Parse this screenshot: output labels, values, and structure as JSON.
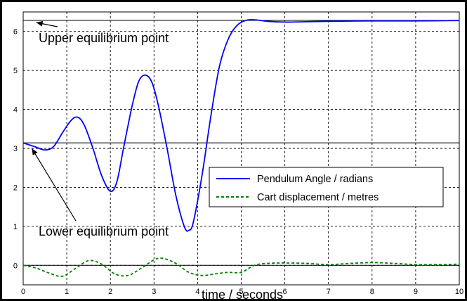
{
  "chart_data": {
    "type": "line",
    "xlabel": "time / seconds",
    "ylabel": "",
    "xlim": [
      0,
      10
    ],
    "ylim": [
      -0.5,
      6.5
    ],
    "xticks": [
      "0",
      "1",
      "2",
      "3",
      "4",
      "5",
      "6",
      "7",
      "8",
      "9",
      "10"
    ],
    "yticks": [
      "0",
      "1",
      "2",
      "3",
      "4",
      "5",
      "6"
    ],
    "grid": true,
    "legend_position": "center-right",
    "reference_lines": [
      {
        "y": 6.2832
      },
      {
        "y": 3.1416
      },
      {
        "y": 0
      }
    ],
    "series": [
      {
        "name": "Pendulum Angle / radians",
        "color": "#0000ff",
        "style": "solid",
        "x": [
          0,
          0.25,
          0.5,
          0.7,
          0.9,
          1.1,
          1.25,
          1.4,
          1.6,
          1.8,
          2.0,
          2.15,
          2.3,
          2.5,
          2.65,
          2.8,
          2.95,
          3.1,
          3.3,
          3.5,
          3.7,
          3.8,
          3.9,
          4.1,
          4.3,
          4.5,
          4.7,
          4.9,
          5.1,
          5.3,
          5.6,
          6.0,
          6.5,
          7,
          8,
          9,
          10
        ],
        "y": [
          3.14,
          3.05,
          2.96,
          3.05,
          3.4,
          3.72,
          3.8,
          3.6,
          3.0,
          2.3,
          1.9,
          2.15,
          3.0,
          4.1,
          4.72,
          4.88,
          4.7,
          4.1,
          3.0,
          1.8,
          0.98,
          0.9,
          1.1,
          2.3,
          3.8,
          5.1,
          5.8,
          6.15,
          6.28,
          6.3,
          6.26,
          6.24,
          6.25,
          6.26,
          6.27,
          6.27,
          6.28
        ]
      },
      {
        "name": "Cart displacement / metres",
        "color": "#008000",
        "style": "dashed",
        "x": [
          0,
          0.3,
          0.6,
          0.9,
          1.2,
          1.5,
          1.8,
          2.1,
          2.4,
          2.7,
          3.0,
          3.2,
          3.5,
          3.8,
          4.1,
          4.4,
          4.7,
          5.0,
          5.3,
          5.6,
          6.0,
          6.5,
          7,
          7.5,
          8,
          8.5,
          9,
          9.5,
          10
        ],
        "y": [
          0.0,
          -0.07,
          -0.2,
          -0.28,
          -0.08,
          0.12,
          0.03,
          -0.22,
          -0.26,
          -0.08,
          0.14,
          0.18,
          0.05,
          -0.18,
          -0.26,
          -0.22,
          -0.18,
          -0.18,
          0.0,
          0.05,
          0.06,
          0.05,
          0.02,
          0.05,
          0.07,
          0.05,
          0.02,
          0.02,
          0.03
        ]
      }
    ],
    "annotations": [
      {
        "text": "Upper equilibrium point",
        "points_to": [
          0,
          6.2832
        ]
      },
      {
        "text": "Lower equilibrium point",
        "points_to": [
          0,
          3.1416
        ]
      }
    ]
  }
}
